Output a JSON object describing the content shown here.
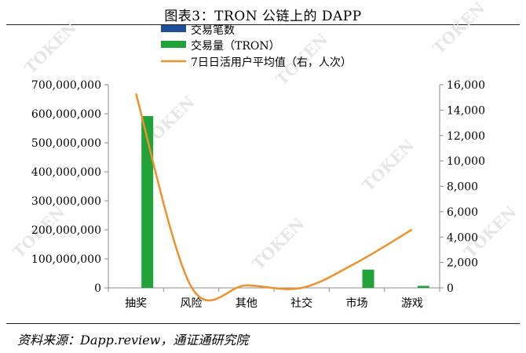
{
  "figure": {
    "title": "图表3：TRON 公链上的 DAPP",
    "source": "资料来源：Dapp.review，通证通研究院",
    "watermark": "TOKEN"
  },
  "chart_data": {
    "type": "bar",
    "categories": [
      "抽奖",
      "风险",
      "其他",
      "社交",
      "市场",
      "游戏"
    ],
    "series": [
      {
        "name": "交易笔数",
        "type": "bar",
        "axis": "left",
        "color": "#1f4e9c",
        "values": [
          0,
          0,
          0,
          0,
          0,
          0
        ]
      },
      {
        "name": "交易量（TRON）",
        "type": "bar",
        "axis": "left",
        "color": "#22a33a",
        "values": [
          592000000,
          0,
          0,
          0,
          63000000,
          7000000
        ]
      },
      {
        "name": "7日日活用户平均值（右，人次）",
        "type": "line",
        "axis": "right",
        "color": "#f0902a",
        "values": [
          15300,
          100,
          200,
          0,
          2000,
          4600
        ]
      }
    ],
    "y_left": {
      "range": [
        0,
        700000000
      ],
      "ticks": [
        0,
        100000000,
        200000000,
        300000000,
        400000000,
        500000000,
        600000000,
        700000000
      ],
      "tick_labels": [
        "0",
        "100,000,000",
        "200,000,000",
        "300,000,000",
        "400,000,000",
        "500,000,000",
        "600,000,000",
        "700,000,000"
      ]
    },
    "y_right": {
      "range": [
        0,
        16000
      ],
      "ticks": [
        0,
        2000,
        4000,
        6000,
        8000,
        10000,
        12000,
        14000,
        16000
      ],
      "tick_labels": [
        "0",
        "2,000",
        "4,000",
        "6,000",
        "8,000",
        "10,000",
        "12,000",
        "14,000",
        "16,000"
      ]
    },
    "grid": false,
    "legend_position": "top"
  }
}
